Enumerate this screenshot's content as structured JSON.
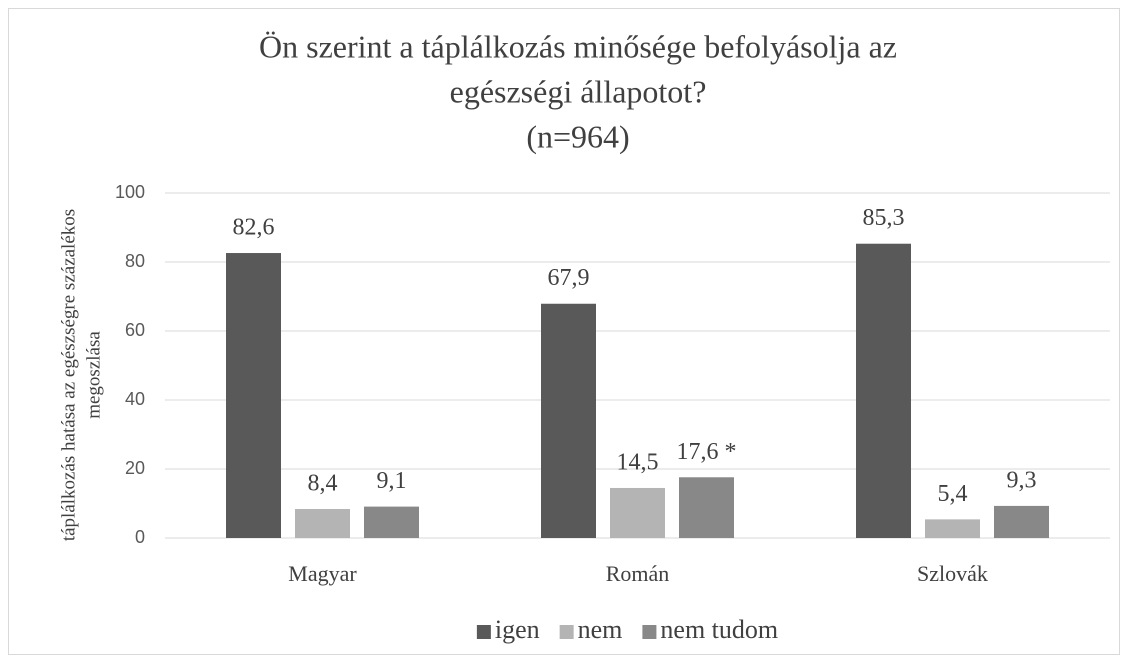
{
  "chart_data": {
    "type": "bar",
    "title": [
      "Ön szerint a táplálkozás minősége befolyásolja az",
      "egészségi állapotot?"
    ],
    "subtitle": "(n=964)",
    "ylabel": [
      "táplálkozás hatása az egészségre százalékos",
      "megoszlása"
    ],
    "categories": [
      "Magyar",
      "Román",
      "Szlovák"
    ],
    "series": [
      {
        "name": "igen",
        "color": "#595959",
        "values": [
          82.6,
          67.9,
          85.3
        ],
        "value_labels": [
          "82,6",
          "67,9",
          "85,3"
        ]
      },
      {
        "name": "nem",
        "color": "#b4b4b4",
        "values": [
          8.4,
          14.5,
          5.4
        ],
        "value_labels": [
          "8,4",
          "14,5",
          "5,4"
        ]
      },
      {
        "name": "nem tudom",
        "color": "#888888",
        "values": [
          9.1,
          17.6,
          9.3
        ],
        "value_labels": [
          "9,1",
          "17,6 *",
          "9,3"
        ]
      }
    ],
    "ylim": [
      0,
      100
    ],
    "yticks": [
      0,
      20,
      40,
      60,
      80,
      100
    ],
    "grid": true,
    "legend": "bottom"
  }
}
